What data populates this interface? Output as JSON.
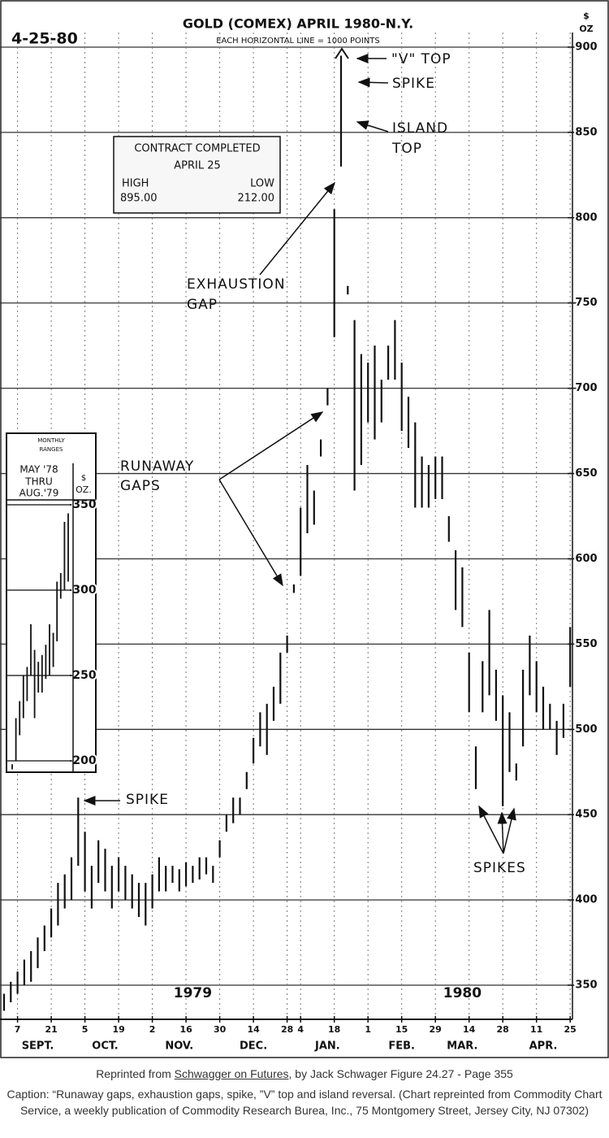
{
  "chart_data": [
    {
      "type": "ohlc",
      "title": "GOLD (COMEX) APRIL 1980-N.Y.",
      "subtitle": "EACH HORIZONTAL LINE = 1000 POINTS",
      "date": "4-25-80",
      "y_unit": [
        "$",
        "OZ"
      ],
      "categories": [
        null,
        null,
        "7",
        null,
        null,
        null,
        null,
        "21",
        null,
        null,
        null,
        null,
        "5",
        null,
        null,
        null,
        null,
        "19",
        null,
        null,
        null,
        null,
        "2",
        null,
        null,
        null,
        null,
        "16",
        null,
        null,
        null,
        null,
        "30",
        null,
        null,
        null,
        null,
        "14",
        null,
        null,
        null,
        null,
        "28",
        null,
        "4",
        null,
        null,
        null,
        null,
        "18",
        null,
        null,
        null,
        null,
        "1",
        null,
        null,
        null,
        null,
        "15",
        null,
        null,
        null,
        null,
        "29",
        null,
        null,
        null,
        null,
        "14",
        null,
        null,
        null,
        null,
        "28",
        null,
        null,
        null,
        null,
        "11",
        null,
        null,
        null,
        null,
        "25"
      ],
      "month_categories": [
        null,
        null,
        null,
        null,
        null,
        "SEPT.",
        null,
        null,
        null,
        null,
        null,
        null,
        null,
        null,
        null,
        "OCT.",
        null,
        null,
        null,
        null,
        null,
        null,
        null,
        null,
        null,
        null,
        "NOV.",
        null,
        null,
        null,
        null,
        null,
        null,
        null,
        null,
        null,
        null,
        "DEC.",
        null,
        null,
        null,
        null,
        null,
        null,
        null,
        null,
        null,
        null,
        "JAN.",
        null,
        null,
        null,
        null,
        null,
        null,
        null,
        null,
        null,
        null,
        "FEB.",
        null,
        null,
        null,
        null,
        null,
        null,
        null,
        null,
        "MAR.",
        null,
        null,
        null,
        null,
        null,
        null,
        null,
        null,
        null,
        null,
        null,
        "APR.",
        null,
        null,
        null,
        null
      ],
      "year_categories": [
        null,
        null,
        null,
        null,
        null,
        null,
        null,
        null,
        null,
        null,
        null,
        null,
        null,
        null,
        null,
        null,
        null,
        null,
        null,
        null,
        null,
        null,
        null,
        null,
        null,
        null,
        null,
        null,
        "1979",
        null,
        null,
        null,
        null,
        null,
        null,
        null,
        null,
        null,
        null,
        null,
        null,
        null,
        null,
        null,
        null,
        null,
        null,
        null,
        null,
        null,
        null,
        null,
        null,
        null,
        null,
        null,
        null,
        null,
        null,
        null,
        null,
        null,
        null,
        null,
        null,
        null,
        null,
        null,
        "1980",
        null,
        null,
        null,
        null,
        null,
        null,
        null,
        null,
        null,
        null,
        null,
        null,
        null,
        null,
        null,
        null
      ],
      "high": [
        345,
        352,
        358,
        365,
        370,
        378,
        385,
        395,
        410,
        415,
        425,
        460,
        440,
        420,
        435,
        430,
        420,
        425,
        420,
        415,
        410,
        410,
        415,
        425,
        420,
        420,
        418,
        422,
        420,
        425,
        425,
        420,
        435,
        450,
        460,
        460,
        475,
        495,
        510,
        515,
        525,
        545,
        555,
        585,
        630,
        655,
        640,
        670,
        700,
        805,
        895,
        760,
        740,
        720,
        715,
        725,
        705,
        725,
        740,
        715,
        695,
        680,
        660,
        655,
        660,
        660,
        625,
        605,
        595,
        545,
        490,
        540,
        570,
        535,
        520,
        510,
        480,
        535,
        555,
        540,
        525,
        515,
        505,
        515,
        560
      ],
      "low": [
        335,
        340,
        345,
        350,
        352,
        360,
        370,
        378,
        385,
        395,
        400,
        420,
        405,
        395,
        410,
        405,
        395,
        405,
        400,
        395,
        390,
        385,
        395,
        405,
        405,
        410,
        405,
        408,
        410,
        412,
        415,
        410,
        425,
        440,
        445,
        450,
        465,
        480,
        490,
        485,
        505,
        515,
        545,
        580,
        590,
        615,
        620,
        660,
        690,
        730,
        830,
        755,
        640,
        655,
        680,
        670,
        680,
        705,
        705,
        675,
        665,
        630,
        630,
        630,
        635,
        635,
        610,
        570,
        560,
        510,
        465,
        510,
        520,
        505,
        455,
        475,
        470,
        490,
        520,
        510,
        500,
        500,
        485,
        495,
        525
      ],
      "color": "#111111",
      "ylim": [
        330,
        910
      ],
      "yticks": [
        350,
        400,
        450,
        500,
        550,
        600,
        650,
        700,
        750,
        800,
        850,
        900
      ],
      "grid": true,
      "info_box": {
        "title": "CONTRACT COMPLETED",
        "date": "APRIL 25",
        "high_label": "HIGH",
        "low_label": "LOW",
        "high": "895.00",
        "low": "212.00"
      },
      "annotations": [
        "\"V\" TOP",
        "SPIKE",
        "ISLAND",
        "TOP",
        "EXHAUSTION",
        "GAP",
        "RUNAWAY",
        "GAPS",
        "SPIKE",
        "SPIKES"
      ]
    },
    {
      "type": "ohlc",
      "title": [
        "MONTHLY",
        "RANGES"
      ],
      "subtitle": [
        "MAY '78",
        "THRU",
        "AUG.'79"
      ],
      "y_unit": [
        "$",
        "OZ."
      ],
      "categories": [
        null,
        null,
        null,
        null,
        null,
        null,
        null,
        null,
        null,
        null,
        null,
        null,
        null,
        null,
        null,
        null
      ],
      "high": [
        198,
        225,
        235,
        250,
        255,
        280,
        265,
        258,
        262,
        268,
        280,
        275,
        305,
        310,
        340,
        345
      ],
      "low": [
        195,
        200,
        215,
        225,
        235,
        250,
        225,
        240,
        240,
        248,
        250,
        255,
        270,
        295,
        300,
        305
      ],
      "color": "#111111",
      "ylim": [
        195,
        352
      ],
      "yticks": [
        200,
        250,
        300,
        350
      ],
      "grid": true
    }
  ],
  "caption": {
    "source": {
      "prefix": "Reprinted from ",
      "book": "Schwagger on Futures",
      "suffix": ", by Jack Schwager Figure 24.27 - Page 355"
    },
    "text": "Caption: “Runaway gaps, exhaustion gaps, spike, ”V” top and island reversal. (Chart repreinted from Commodity Chart Service, a weekly publication of Commodity Research Burea, Inc., 75 Montgomery Street, Jersey City, NJ 07302)"
  }
}
